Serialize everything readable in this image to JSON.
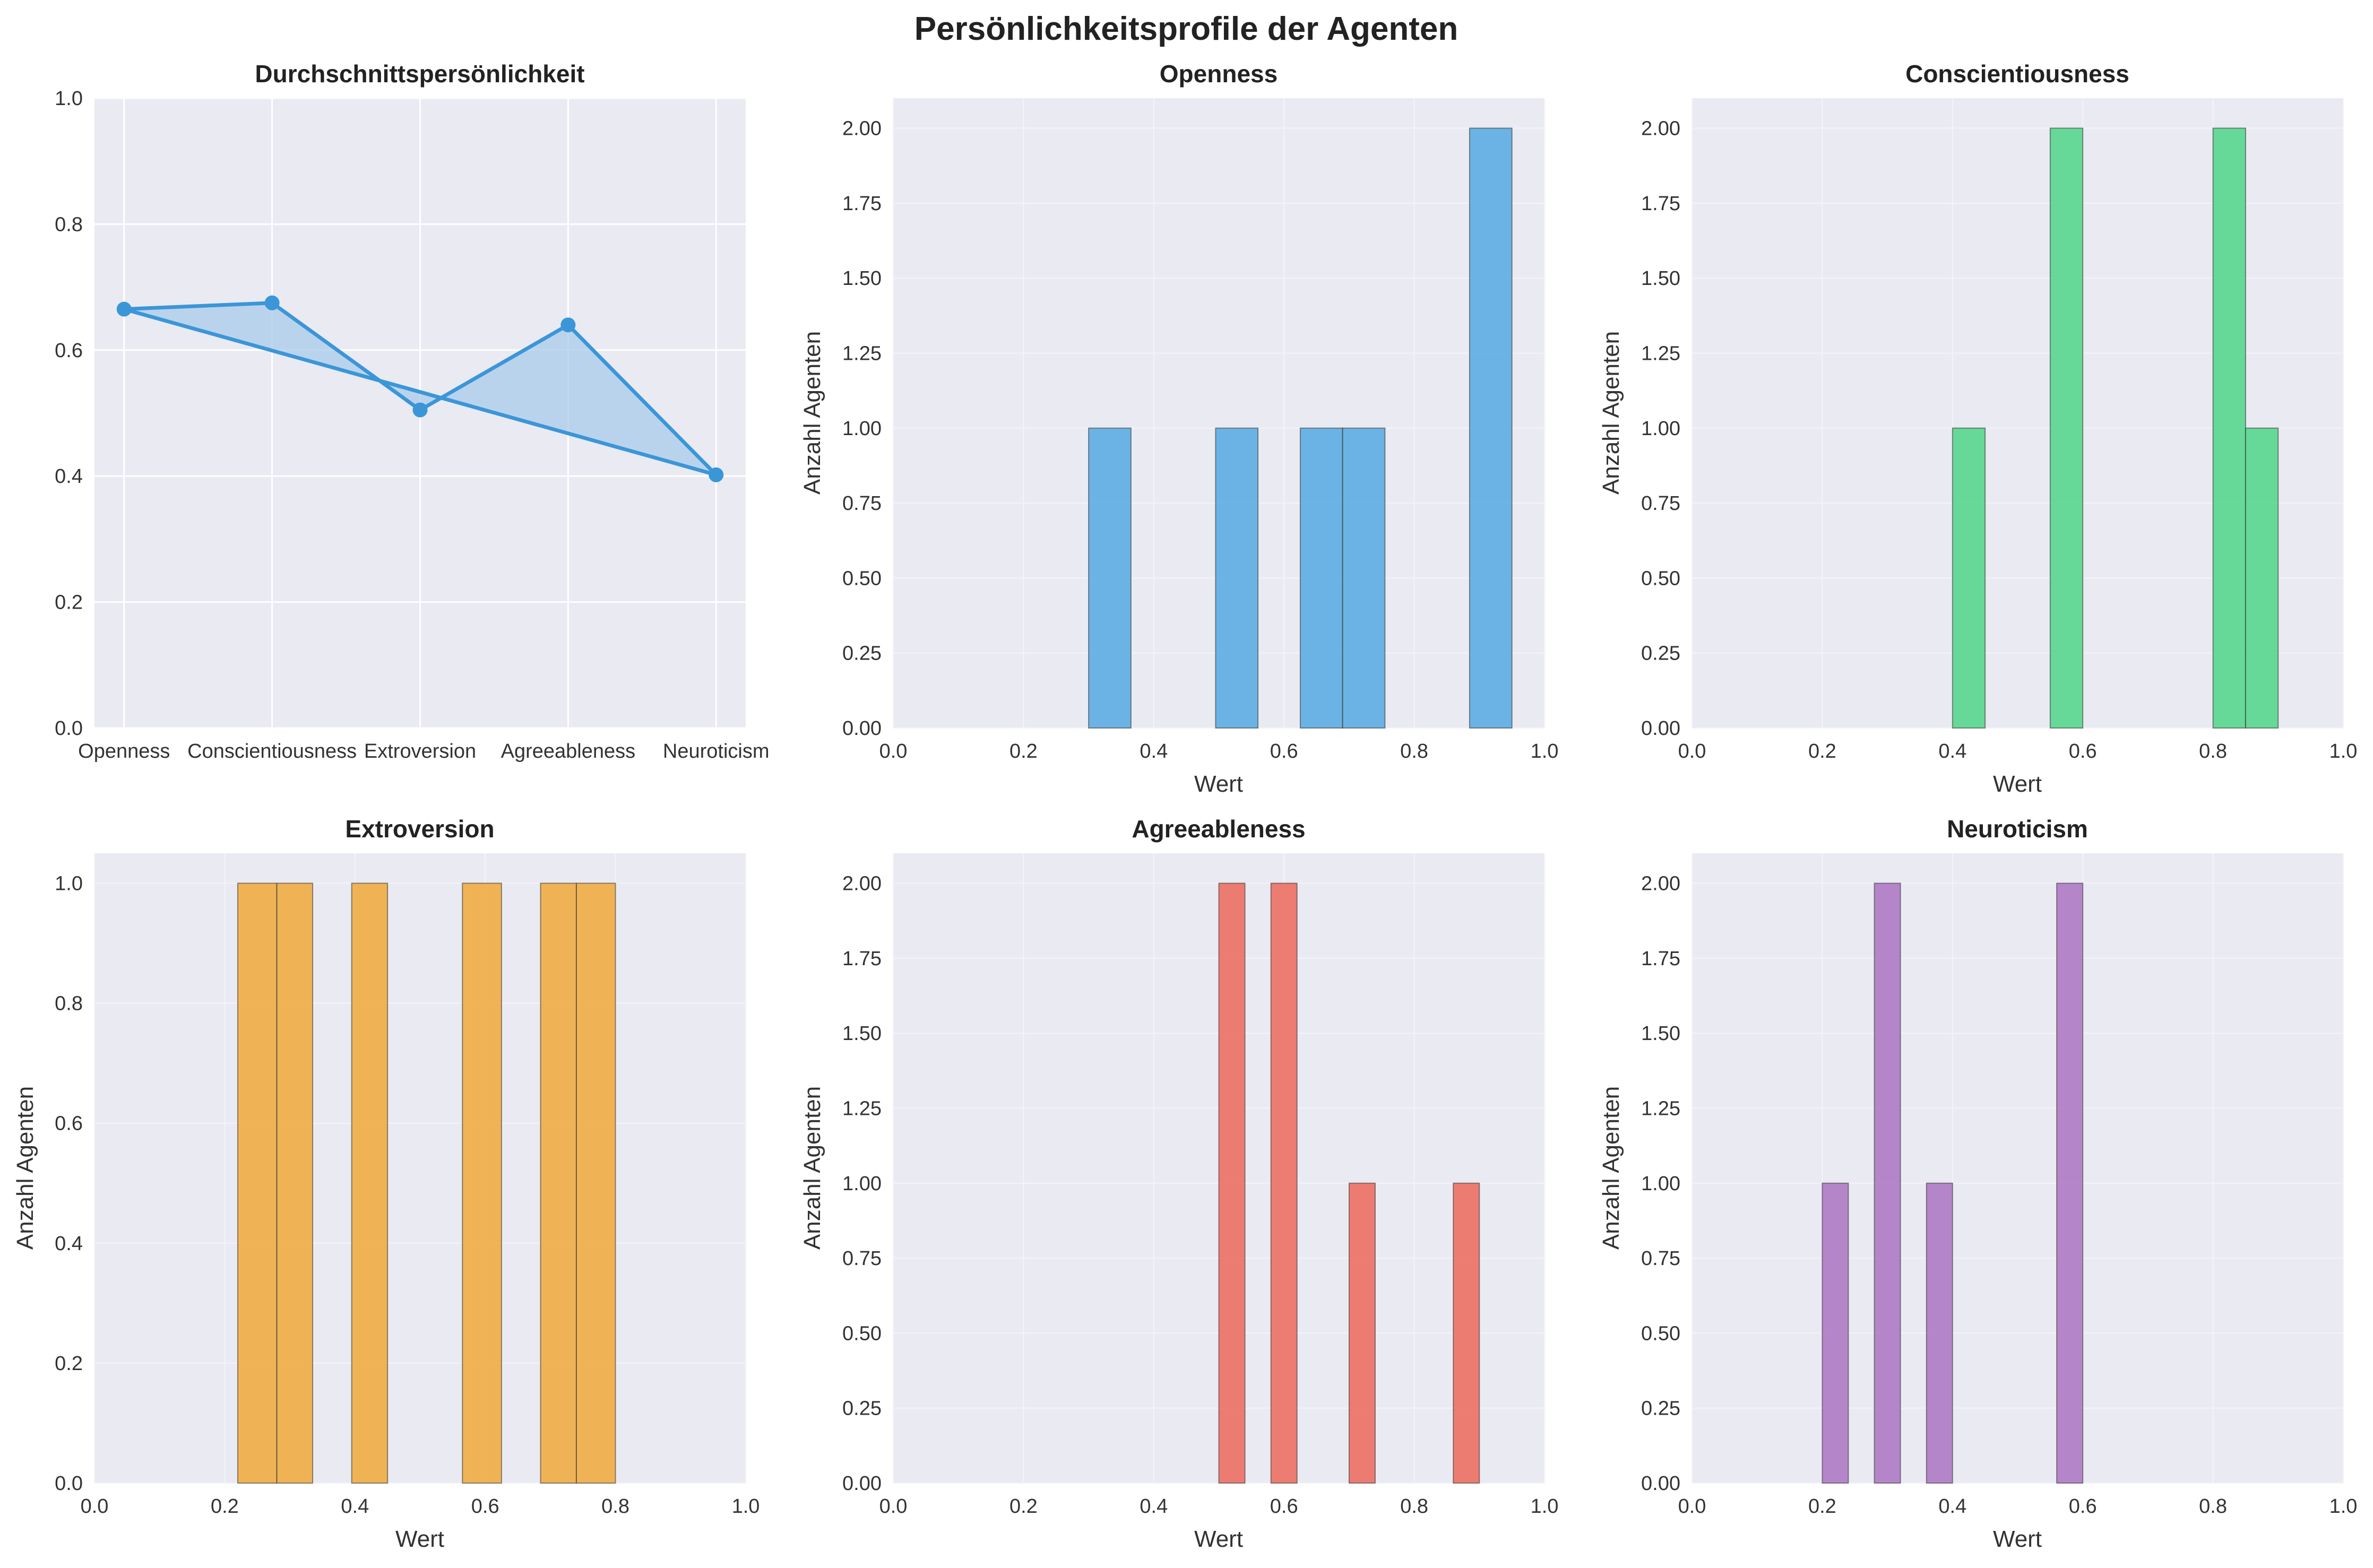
{
  "figure": {
    "title": "Persönlichkeitsprofile der Agenten"
  },
  "chart_data": [
    {
      "type": "line",
      "title": "Durchschnittspersönlichkeit",
      "categories": [
        "Openness",
        "Conscientiousness",
        "Extroversion",
        "Agreeableness",
        "Neuroticism"
      ],
      "values": [
        0.665,
        0.675,
        0.505,
        0.64,
        0.402
      ],
      "ylim": [
        0,
        1
      ],
      "yticks": [
        "0.0",
        "0.2",
        "0.4",
        "0.6",
        "0.8",
        "1.0"
      ],
      "xlabel": "",
      "ylabel": "",
      "color": "#3b96d8",
      "fill_color": "#a9cbea",
      "grid": true
    },
    {
      "type": "bar",
      "title": "Openness",
      "bins": [
        {
          "x0": 0.3,
          "x1": 0.365,
          "count": 1
        },
        {
          "x0": 0.495,
          "x1": 0.56,
          "count": 1
        },
        {
          "x0": 0.625,
          "x1": 0.69,
          "count": 1
        },
        {
          "x0": 0.69,
          "x1": 0.755,
          "count": 1
        },
        {
          "x0": 0.885,
          "x1": 0.95,
          "count": 2
        }
      ],
      "xlim": [
        0,
        1
      ],
      "ylim": [
        0,
        2.1
      ],
      "xticks": [
        "0.0",
        "0.2",
        "0.4",
        "0.6",
        "0.8",
        "1.0"
      ],
      "yticks": [
        "0.00",
        "0.25",
        "0.50",
        "0.75",
        "1.00",
        "1.25",
        "1.50",
        "1.75",
        "2.00"
      ],
      "xlabel": "Wert",
      "ylabel": "Anzahl Agenten",
      "color": "#5dade2",
      "grid": true
    },
    {
      "type": "bar",
      "title": "Conscientiousness",
      "bins": [
        {
          "x0": 0.4,
          "x1": 0.45,
          "count": 1
        },
        {
          "x0": 0.55,
          "x1": 0.6,
          "count": 2
        },
        {
          "x0": 0.8,
          "x1": 0.85,
          "count": 2
        },
        {
          "x0": 0.85,
          "x1": 0.9,
          "count": 1
        }
      ],
      "xlim": [
        0,
        1
      ],
      "ylim": [
        0,
        2.1
      ],
      "xticks": [
        "0.0",
        "0.2",
        "0.4",
        "0.6",
        "0.8",
        "1.0"
      ],
      "yticks": [
        "0.00",
        "0.25",
        "0.50",
        "0.75",
        "1.00",
        "1.25",
        "1.50",
        "1.75",
        "2.00"
      ],
      "xlabel": "Wert",
      "ylabel": "Anzahl Agenten",
      "color": "#58d68d",
      "grid": true
    },
    {
      "type": "bar",
      "title": "Extroversion",
      "bins": [
        {
          "x0": 0.22,
          "x1": 0.28,
          "count": 1
        },
        {
          "x0": 0.28,
          "x1": 0.335,
          "count": 1
        },
        {
          "x0": 0.395,
          "x1": 0.45,
          "count": 1
        },
        {
          "x0": 0.565,
          "x1": 0.625,
          "count": 1
        },
        {
          "x0": 0.685,
          "x1": 0.74,
          "count": 1
        },
        {
          "x0": 0.74,
          "x1": 0.8,
          "count": 1
        }
      ],
      "xlim": [
        0,
        1
      ],
      "ylim": [
        0,
        1.05
      ],
      "xticks": [
        "0.0",
        "0.2",
        "0.4",
        "0.6",
        "0.8",
        "1.0"
      ],
      "yticks": [
        "0.0",
        "0.2",
        "0.4",
        "0.6",
        "0.8",
        "1.0"
      ],
      "xlabel": "Wert",
      "ylabel": "Anzahl Agenten",
      "color": "#f0ad45",
      "grid": true
    },
    {
      "type": "bar",
      "title": "Agreeableness",
      "bins": [
        {
          "x0": 0.5,
          "x1": 0.54,
          "count": 2
        },
        {
          "x0": 0.58,
          "x1": 0.62,
          "count": 2
        },
        {
          "x0": 0.7,
          "x1": 0.74,
          "count": 1
        },
        {
          "x0": 0.86,
          "x1": 0.9,
          "count": 1
        }
      ],
      "xlim": [
        0,
        1
      ],
      "ylim": [
        0,
        2.1
      ],
      "xticks": [
        "0.0",
        "0.2",
        "0.4",
        "0.6",
        "0.8",
        "1.0"
      ],
      "yticks": [
        "0.00",
        "0.25",
        "0.50",
        "0.75",
        "1.00",
        "1.25",
        "1.50",
        "1.75",
        "2.00"
      ],
      "xlabel": "Wert",
      "ylabel": "Anzahl Agenten",
      "color": "#ec7063",
      "grid": true
    },
    {
      "type": "bar",
      "title": "Neuroticism",
      "bins": [
        {
          "x0": 0.2,
          "x1": 0.24,
          "count": 1
        },
        {
          "x0": 0.28,
          "x1": 0.32,
          "count": 2
        },
        {
          "x0": 0.36,
          "x1": 0.4,
          "count": 1
        },
        {
          "x0": 0.56,
          "x1": 0.6,
          "count": 2
        }
      ],
      "xlim": [
        0,
        1
      ],
      "ylim": [
        0,
        2.1
      ],
      "xticks": [
        "0.0",
        "0.2",
        "0.4",
        "0.6",
        "0.8",
        "1.0"
      ],
      "yticks": [
        "0.00",
        "0.25",
        "0.50",
        "0.75",
        "1.00",
        "1.25",
        "1.50",
        "1.75",
        "2.00"
      ],
      "xlabel": "Wert",
      "ylabel": "Anzahl Agenten",
      "color": "#af7ac5",
      "grid": true
    }
  ]
}
